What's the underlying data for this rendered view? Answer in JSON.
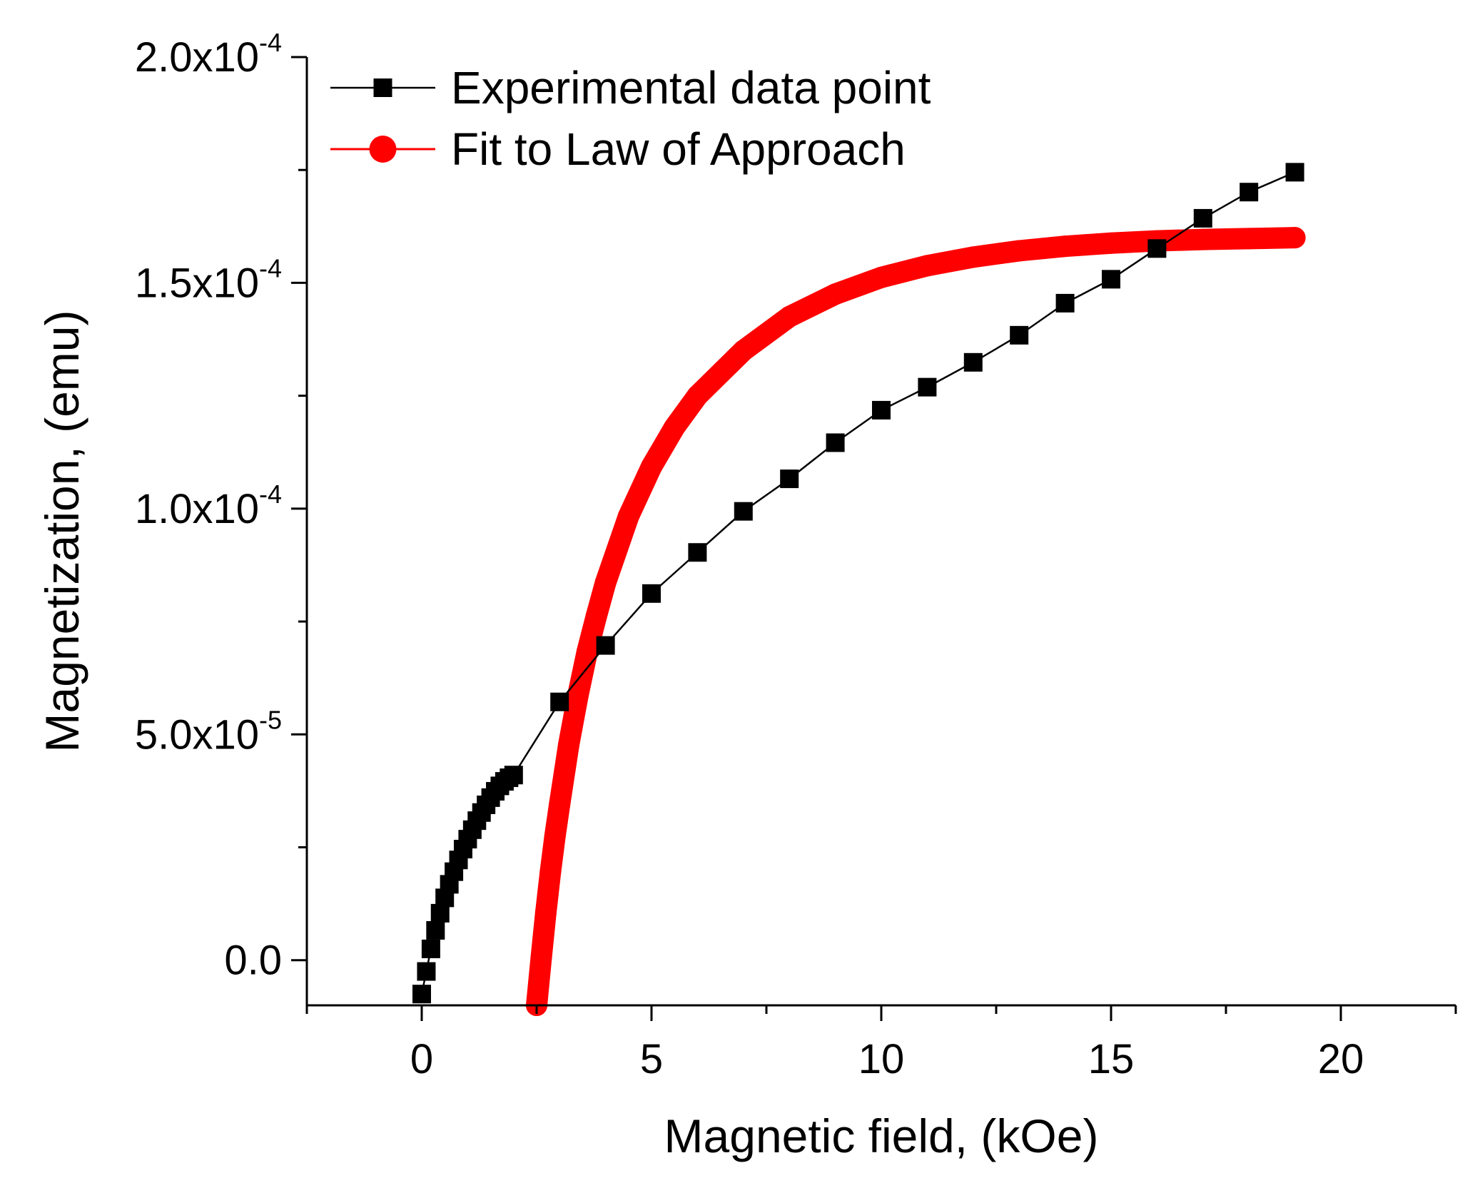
{
  "chart_data": {
    "type": "line",
    "title": "",
    "xlabel": "Magnetic field, (kOe)",
    "ylabel": "Magnetization, (emu)",
    "xlim": [
      -2.5,
      22.5
    ],
    "ylim": [
      -1e-05,
      0.0002
    ],
    "grid": false,
    "legend_position": "top-left",
    "x_ticks": [
      {
        "value": 0,
        "label": "0"
      },
      {
        "value": 5,
        "label": "5"
      },
      {
        "value": 10,
        "label": "10"
      },
      {
        "value": 15,
        "label": "15"
      },
      {
        "value": 20,
        "label": "20"
      }
    ],
    "y_ticks": [
      {
        "value": 0,
        "mantissa": "0.0",
        "exponent": ""
      },
      {
        "value": 5e-05,
        "mantissa": "5.0x10",
        "exponent": "-5"
      },
      {
        "value": 0.0001,
        "mantissa": "1.0x10",
        "exponent": "-4"
      },
      {
        "value": 0.00015,
        "mantissa": "1.5x10",
        "exponent": "-4"
      },
      {
        "value": 0.0002,
        "mantissa": "2.0x10",
        "exponent": "-4"
      }
    ],
    "series": [
      {
        "name": "Experimental data point",
        "color": "#000000",
        "marker": "square",
        "x": [
          0.0,
          0.1,
          0.2,
          0.3,
          0.4,
          0.5,
          0.6,
          0.7,
          0.8,
          0.9,
          1.0,
          1.1,
          1.2,
          1.3,
          1.4,
          1.5,
          1.6,
          1.7,
          1.8,
          1.9,
          2.0,
          3,
          4,
          5,
          6,
          7,
          8,
          9,
          10,
          11,
          12,
          13,
          14,
          15,
          16,
          17,
          18,
          19
        ],
        "y": [
          -7.5e-06,
          -2.5e-06,
          2.5e-06,
          6.6e-06,
          1.04e-05,
          1.38e-05,
          1.68e-05,
          1.96e-05,
          2.22e-05,
          2.46e-05,
          2.68e-05,
          2.89e-05,
          3.09e-05,
          3.27e-05,
          3.44e-05,
          3.6e-05,
          3.74e-05,
          3.86e-05,
          3.96e-05,
          4.04e-05,
          4.1e-05,
          5.72e-05,
          6.97e-05,
          8.12e-05,
          9.03e-05,
          9.94e-05,
          0.0001066,
          0.0001146,
          0.0001218,
          0.0001269,
          0.0001324,
          0.0001384,
          0.0001455,
          0.0001508,
          0.0001576,
          0.0001643,
          0.0001701,
          0.0001745
        ]
      },
      {
        "name": "Fit to Law of Approach",
        "color": "#ff0000",
        "marker": "circle",
        "x": [
          2.5,
          2.6,
          2.7,
          2.8,
          2.9,
          3.0,
          3.2,
          3.4,
          3.6,
          3.8,
          4.0,
          4.5,
          5.0,
          5.5,
          6.0,
          7.0,
          8.0,
          9.0,
          10.0,
          11.0,
          12.0,
          13.0,
          14.0,
          15.0,
          16.0,
          17.0,
          18.0,
          19.0
        ],
        "y": [
          -1e-05,
          5e-07,
          1.05e-05,
          1.95e-05,
          2.75e-05,
          3.45e-05,
          4.78e-05,
          5.87e-05,
          6.83e-05,
          7.62e-05,
          8.36e-05,
          9.83e-05,
          0.0001093,
          0.000118,
          0.000125,
          0.000135,
          0.0001425,
          0.0001475,
          0.0001512,
          0.0001538,
          0.0001557,
          0.0001571,
          0.0001581,
          0.0001588,
          0.0001593,
          0.0001596,
          0.0001598,
          0.00016
        ]
      }
    ]
  }
}
